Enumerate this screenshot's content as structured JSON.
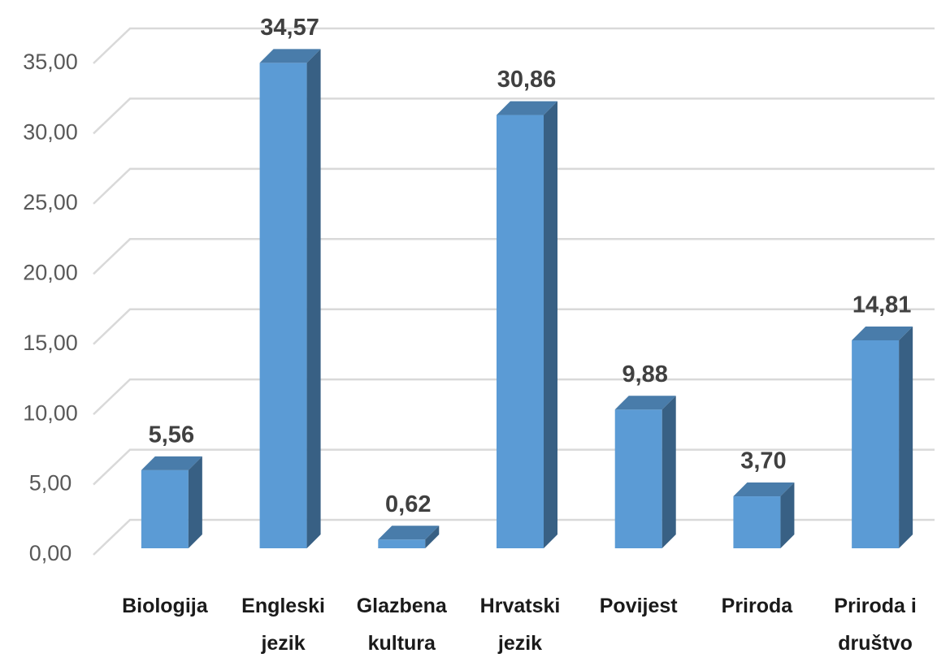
{
  "chart_data": {
    "type": "bar3d",
    "categories": [
      "Biologija",
      "Engleski jezik",
      "Glazbena kultura",
      "Hrvatski jezik",
      "Povijest",
      "Priroda",
      "Priroda i društvo"
    ],
    "values": [
      5.56,
      34.57,
      0.62,
      30.86,
      9.88,
      3.7,
      14.81
    ],
    "value_labels": [
      "5,56",
      "34,57",
      "0,62",
      "30,86",
      "9,88",
      "3,70",
      "14,81"
    ],
    "color": "#5b9bd5",
    "ylim": [
      0,
      35
    ],
    "yticks": [
      {
        "value": 0,
        "label": "0,00"
      },
      {
        "value": 5,
        "label": "5,00"
      },
      {
        "value": 10,
        "label": "10,00"
      },
      {
        "value": 15,
        "label": "15,00"
      },
      {
        "value": 20,
        "label": "20,00"
      },
      {
        "value": 25,
        "label": "25,00"
      },
      {
        "value": 30,
        "label": "30,00"
      },
      {
        "value": 35,
        "label": "35,00"
      }
    ],
    "grid": true
  }
}
